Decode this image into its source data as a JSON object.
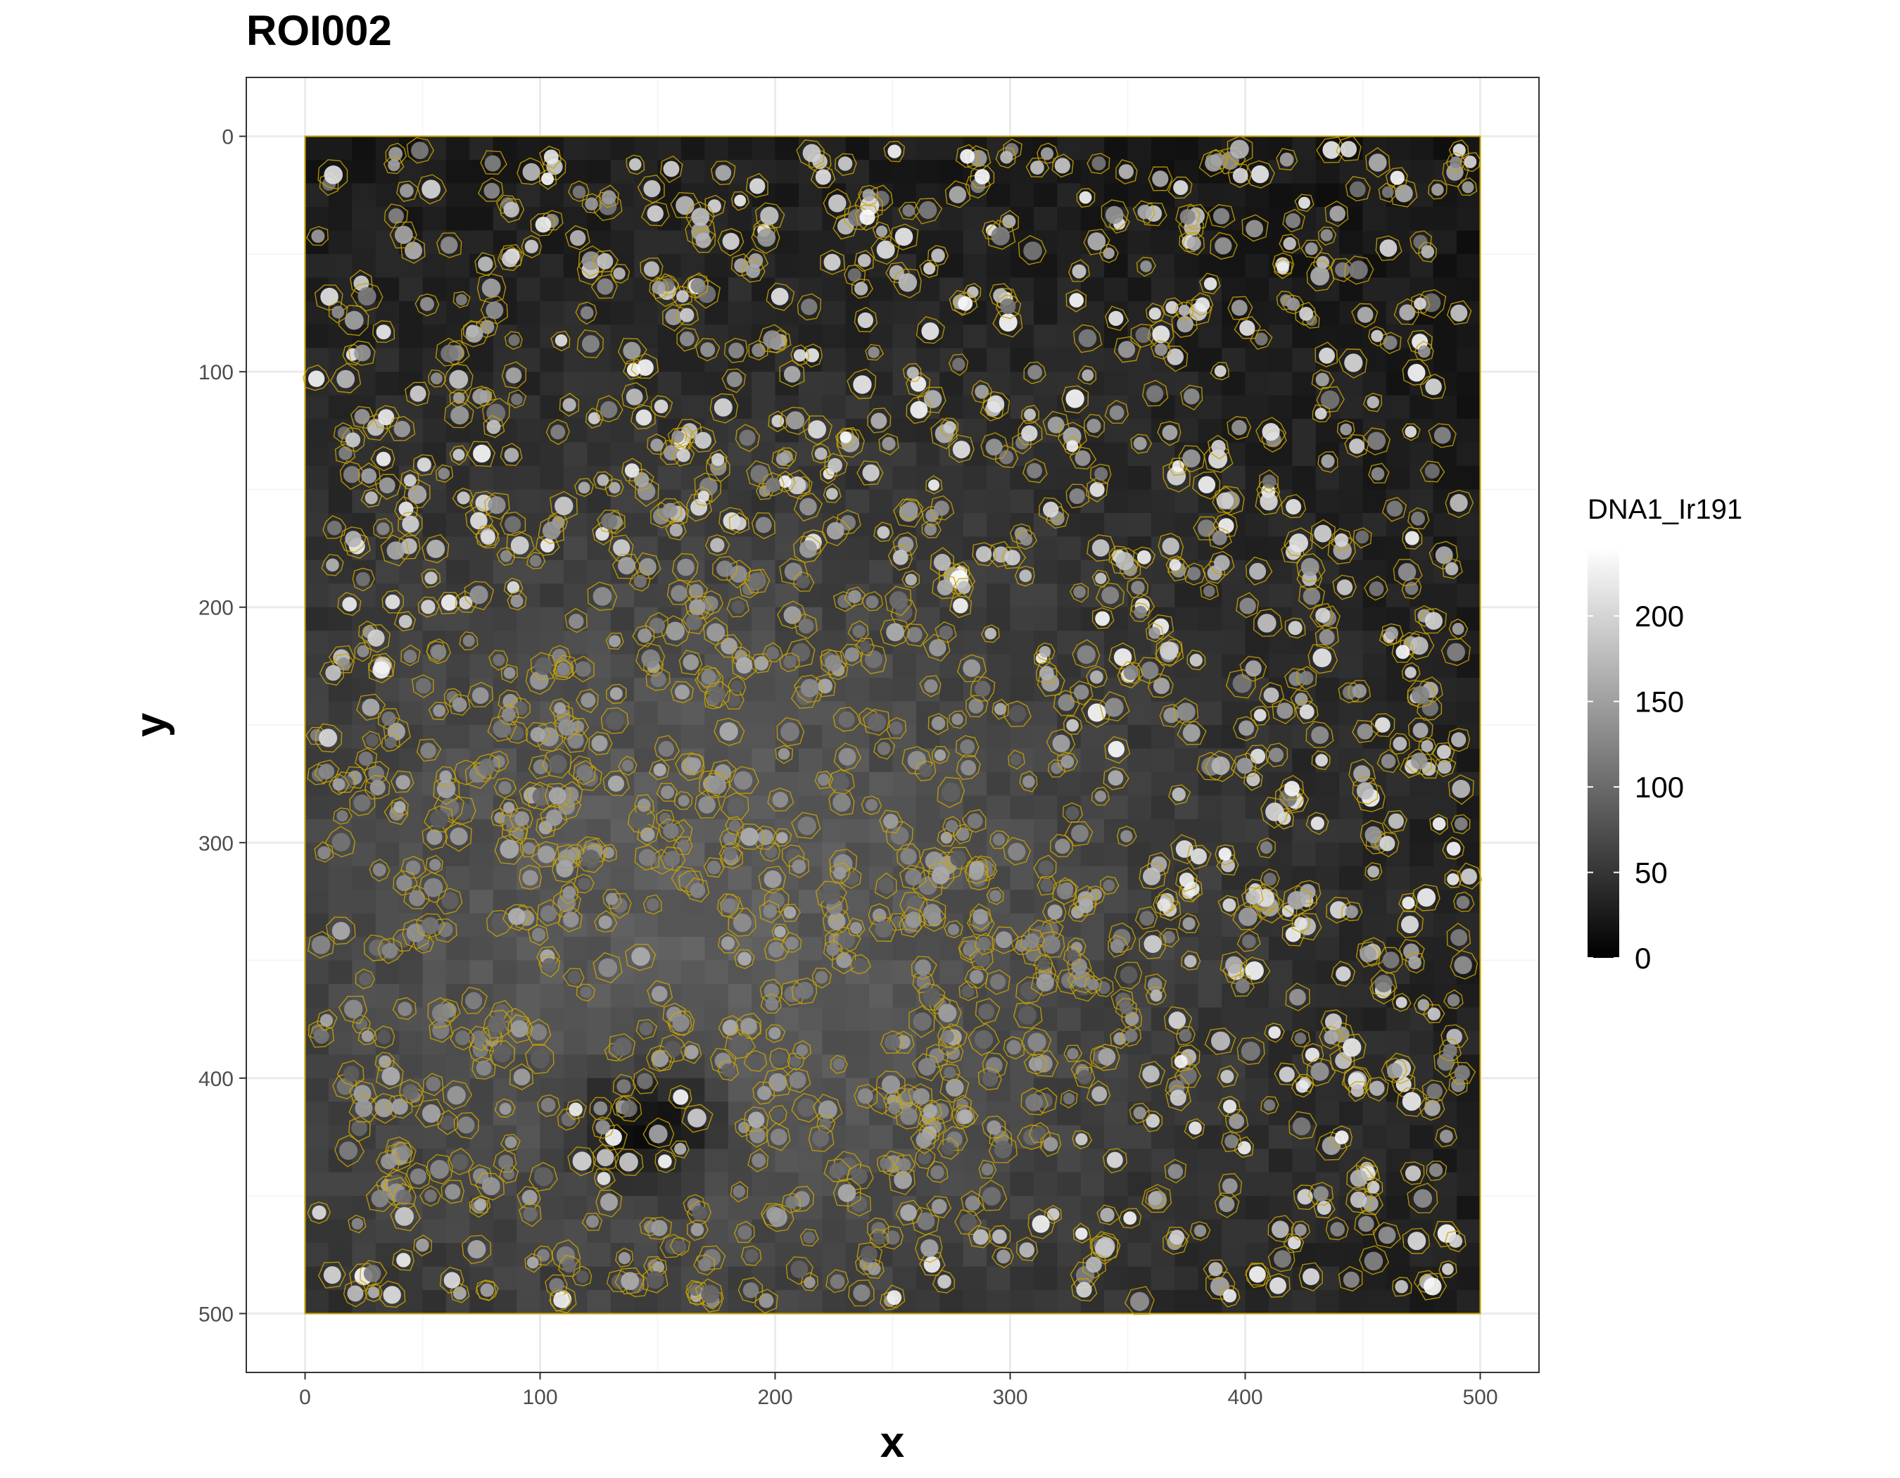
{
  "chart_data": {
    "type": "heatmap",
    "title": "ROI002",
    "xlabel": "x",
    "ylabel": "y",
    "xlim": [
      -25,
      525
    ],
    "ylim": [
      525,
      -25
    ],
    "image_extent": {
      "x": [
        0,
        500
      ],
      "y": [
        0,
        500
      ]
    },
    "x_ticks": [
      0,
      100,
      200,
      300,
      400,
      500
    ],
    "y_ticks": [
      0,
      100,
      200,
      300,
      400,
      500
    ],
    "grid": true,
    "y_axis_reversed": true,
    "channel": "DNA1_Ir191",
    "legend": {
      "title": "DNA1_Ir191",
      "position": "right",
      "ticks": [
        0,
        50,
        100,
        150,
        200
      ],
      "range": [
        0,
        240
      ],
      "low_color": "#000000",
      "high_color": "#ffffff"
    },
    "cell_outline_color": "#c9a400",
    "description_regions": [
      {
        "region": "lower-left tissue core",
        "intensity": "medium gray, densely packed"
      },
      {
        "region": "upper-right",
        "intensity": "bright scattered nuclei on dark background"
      }
    ]
  },
  "colors": {
    "panel_border": "#333333",
    "grid_major": "#ebebeb",
    "grid_minor": "#f5f5f5",
    "axis_text": "#4d4d4d",
    "outline": "#c9a400"
  }
}
